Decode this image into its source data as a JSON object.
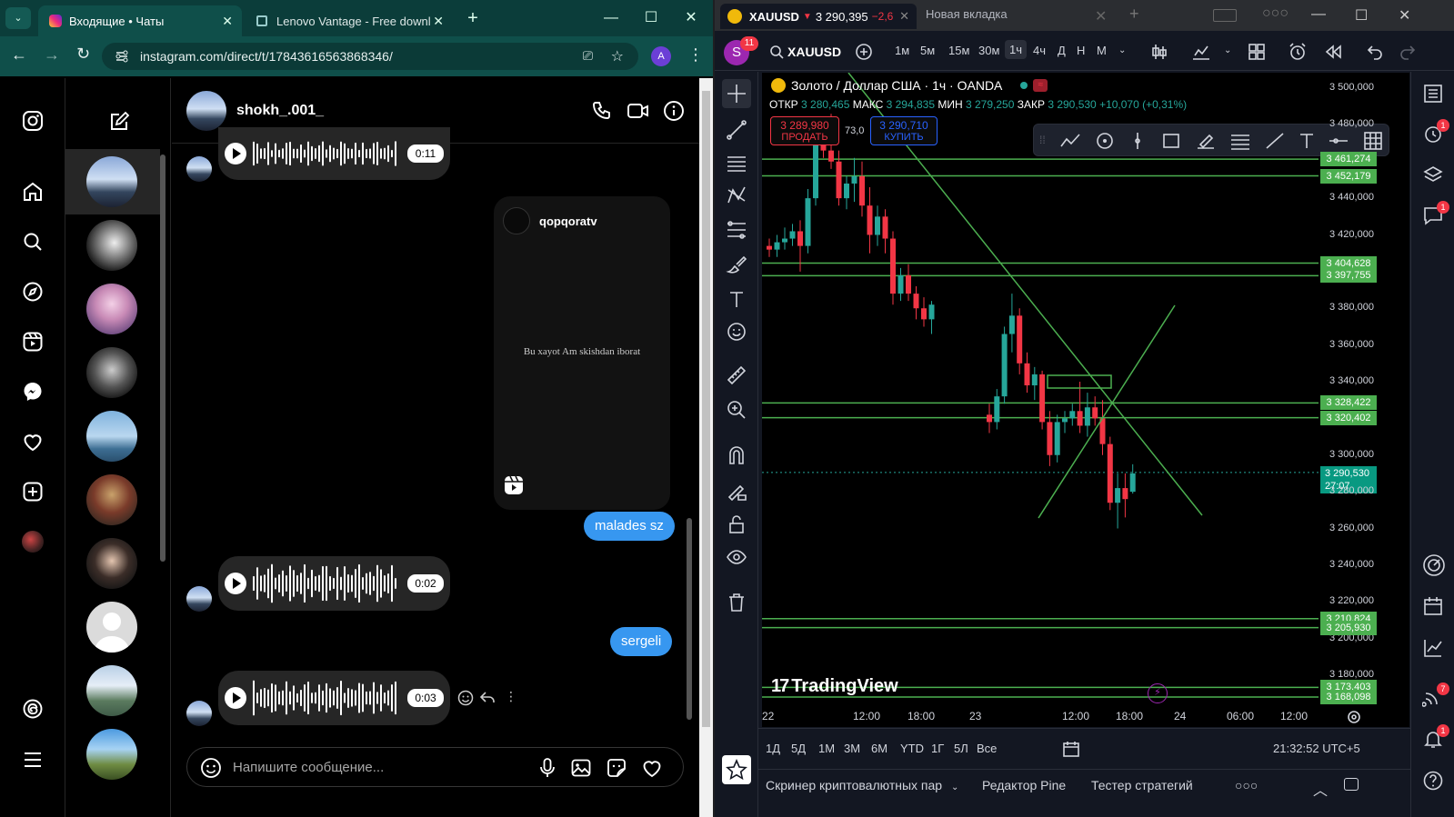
{
  "browser": {
    "tabs": [
      {
        "title": "Входящие • Чаты",
        "active": true
      },
      {
        "title": "Lenovo Vantage - Free downlo",
        "active": false
      }
    ],
    "url": "instagram.com/direct/t/17843616563868346/",
    "profile_initial": "A"
  },
  "instagram": {
    "chat_username": "shokh_.001_",
    "shared_post": {
      "author": "qopqoratv",
      "text": "Bu xayot Am skishdan iborat"
    },
    "messages": [
      {
        "type": "voice",
        "from": "them",
        "duration": "0:11"
      },
      {
        "type": "shared_post",
        "from": "me"
      },
      {
        "type": "text",
        "from": "me",
        "text": "malades sz"
      },
      {
        "type": "voice",
        "from": "them",
        "duration": "0:02"
      },
      {
        "type": "text",
        "from": "me",
        "text": "sergeli"
      },
      {
        "type": "voice",
        "from": "them",
        "duration": "0:03"
      }
    ],
    "composer_placeholder": "Напишите сообщение...",
    "sidebar_icons": [
      "instagram-icon",
      "home-icon",
      "search-icon",
      "explore-icon",
      "reels-icon",
      "messenger-icon",
      "heart-icon",
      "create-icon",
      "profile-icon",
      "threads-icon",
      "menu-icon"
    ]
  },
  "tradingview": {
    "tabs": [
      {
        "title": "XAUUSD",
        "price": "3 290,395",
        "change": "−2,6",
        "active": true
      },
      {
        "title": "Новая вкладка",
        "active": false
      }
    ],
    "avatar_letter": "S",
    "avatar_badge": "11",
    "symbol": "XAUUSD",
    "timeframes": [
      "1м",
      "5м",
      "15м",
      "30м",
      "1ч",
      "4ч",
      "Д",
      "Н",
      "М"
    ],
    "active_timeframe": "1ч",
    "legend": {
      "title": "Золото / Доллар США · 1ч · OANDA",
      "open_label": "ОТКР",
      "open": "3 280,465",
      "high_label": "МАКС",
      "high": "3 294,835",
      "low_label": "МИН",
      "low": "3 279,250",
      "close_label": "ЗАКР",
      "close": "3 290,530",
      "change": "+10,070 (+0,31%)"
    },
    "sell": {
      "price": "3 289,980",
      "label": "ПРОДАТЬ"
    },
    "buy": {
      "price": "3 290,710",
      "label": "КУПИТЬ"
    },
    "spread": "73,0",
    "price_axis": [
      "3 500,000",
      "3 480,000",
      "3 460,000",
      "3 440,000",
      "3 420,000",
      "3 400,000",
      "3 380,000",
      "3 360,000",
      "3 340,000",
      "3 320,000",
      "3 300,000",
      "3 280,000",
      "3 260,000",
      "3 240,000",
      "3 220,000",
      "3 200,000",
      "3 180,000"
    ],
    "level_tags": [
      "3 461,274",
      "3 452,179",
      "3 404,628",
      "3 397,755",
      "3 328,422",
      "3 320,402",
      "3 210,824",
      "3 205,930",
      "3 173,403",
      "3 168,098"
    ],
    "current_price": "3 290,530",
    "countdown": "27:07",
    "time_axis": [
      "22",
      "12:00",
      "18:00",
      "23",
      "12:00",
      "18:00",
      "24",
      "06:00",
      "12:00"
    ],
    "logo": "TradingView",
    "ranges": [
      "1Д",
      "5Д",
      "1М",
      "3М",
      "6М",
      "YTD",
      "1Г",
      "5Л",
      "Все"
    ],
    "clock": "21:32:52 UTC+5",
    "bottom_tabs": [
      "Скринер криптовалютных пар",
      "Редактор Pine",
      "Тестер стратегий"
    ],
    "badges": {
      "alerts": "1",
      "chat": "1",
      "notifications": "1",
      "signal": "7"
    },
    "colors": {
      "up": "#26a69a",
      "down": "#f23645",
      "level": "#4caf50",
      "bg": "#000000"
    }
  },
  "chart_data": {
    "type": "candlestick",
    "symbol": "XAUUSD",
    "interval": "1h",
    "ylim": [
      3160,
      3500
    ],
    "candles": [
      {
        "o": 3414,
        "h": 3418,
        "l": 3408,
        "c": 3412
      },
      {
        "o": 3412,
        "h": 3420,
        "l": 3408,
        "c": 3416
      },
      {
        "o": 3416,
        "h": 3424,
        "l": 3412,
        "c": 3418
      },
      {
        "o": 3418,
        "h": 3426,
        "l": 3414,
        "c": 3422
      },
      {
        "o": 3422,
        "h": 3428,
        "l": 3400,
        "c": 3414
      },
      {
        "o": 3414,
        "h": 3445,
        "l": 3410,
        "c": 3440
      },
      {
        "o": 3440,
        "h": 3478,
        "l": 3436,
        "c": 3472
      },
      {
        "o": 3472,
        "h": 3484,
        "l": 3462,
        "c": 3466
      },
      {
        "o": 3466,
        "h": 3486,
        "l": 3456,
        "c": 3460
      },
      {
        "o": 3460,
        "h": 3466,
        "l": 3436,
        "c": 3440
      },
      {
        "o": 3440,
        "h": 3452,
        "l": 3434,
        "c": 3448
      },
      {
        "o": 3448,
        "h": 3462,
        "l": 3438,
        "c": 3452
      },
      {
        "o": 3452,
        "h": 3460,
        "l": 3430,
        "c": 3436
      },
      {
        "o": 3436,
        "h": 3446,
        "l": 3410,
        "c": 3420
      },
      {
        "o": 3420,
        "h": 3436,
        "l": 3414,
        "c": 3430
      },
      {
        "o": 3430,
        "h": 3434,
        "l": 3410,
        "c": 3418
      },
      {
        "o": 3418,
        "h": 3422,
        "l": 3382,
        "c": 3388
      },
      {
        "o": 3388,
        "h": 3402,
        "l": 3384,
        "c": 3398
      },
      {
        "o": 3398,
        "h": 3404,
        "l": 3384,
        "c": 3388
      },
      {
        "o": 3388,
        "h": 3392,
        "l": 3374,
        "c": 3380
      },
      {
        "o": 3380,
        "h": 3386,
        "l": 3370,
        "c": 3374
      },
      {
        "o": 3374,
        "h": 3384,
        "l": 3366,
        "c": 3382
      },
      {
        "o": 3322,
        "h": 3328,
        "l": 3312,
        "c": 3318
      },
      {
        "o": 3318,
        "h": 3336,
        "l": 3314,
        "c": 3332
      },
      {
        "o": 3332,
        "h": 3370,
        "l": 3328,
        "c": 3366
      },
      {
        "o": 3366,
        "h": 3388,
        "l": 3356,
        "c": 3376
      },
      {
        "o": 3376,
        "h": 3380,
        "l": 3344,
        "c": 3350
      },
      {
        "o": 3350,
        "h": 3356,
        "l": 3334,
        "c": 3338
      },
      {
        "o": 3338,
        "h": 3348,
        "l": 3330,
        "c": 3344
      },
      {
        "o": 3344,
        "h": 3346,
        "l": 3314,
        "c": 3318
      },
      {
        "o": 3318,
        "h": 3324,
        "l": 3294,
        "c": 3300
      },
      {
        "o": 3300,
        "h": 3322,
        "l": 3296,
        "c": 3318
      },
      {
        "o": 3318,
        "h": 3324,
        "l": 3312,
        "c": 3320
      },
      {
        "o": 3320,
        "h": 3328,
        "l": 3316,
        "c": 3324
      },
      {
        "o": 3324,
        "h": 3340,
        "l": 3312,
        "c": 3316
      },
      {
        "o": 3316,
        "h": 3334,
        "l": 3310,
        "c": 3326
      },
      {
        "o": 3326,
        "h": 3332,
        "l": 3316,
        "c": 3320
      },
      {
        "o": 3320,
        "h": 3330,
        "l": 3300,
        "c": 3306
      },
      {
        "o": 3306,
        "h": 3310,
        "l": 3270,
        "c": 3274
      },
      {
        "o": 3274,
        "h": 3290,
        "l": 3260,
        "c": 3282
      },
      {
        "o": 3282,
        "h": 3290,
        "l": 3266,
        "c": 3276
      },
      {
        "o": 3280,
        "h": 3295,
        "l": 3279,
        "c": 3290
      }
    ],
    "horizontal_levels": [
      3461.274,
      3452.179,
      3404.628,
      3397.755,
      3328.422,
      3320.402,
      3210.824,
      3205.93,
      3173.403,
      3168.098
    ]
  }
}
